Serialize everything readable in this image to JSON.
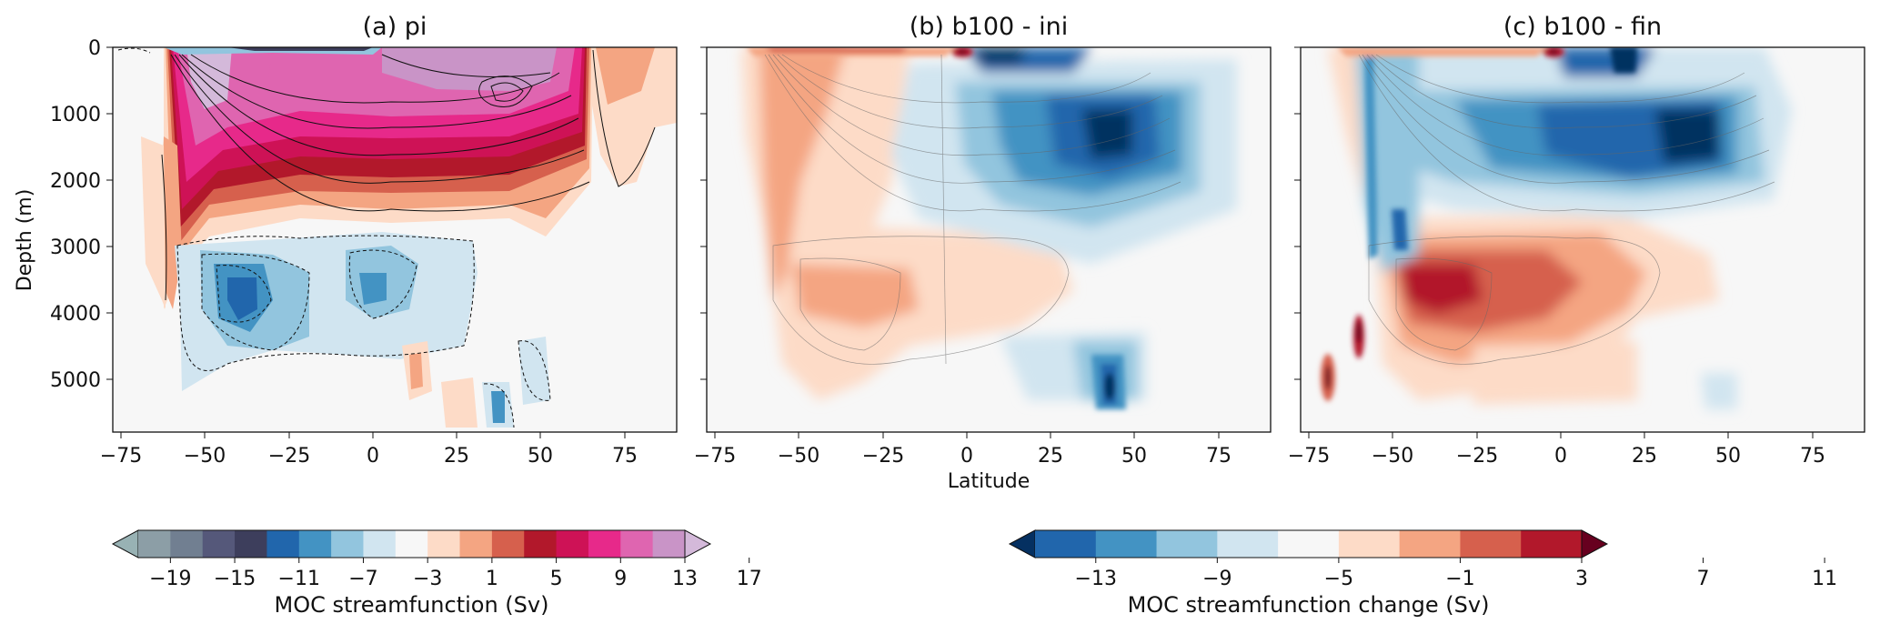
{
  "chart_data": [
    {
      "type": "contour",
      "title": "(a) pi",
      "xlabel": "",
      "ylabel": "Depth (m)",
      "xlim": [
        -78,
        90
      ],
      "ylim": [
        5800,
        0
      ],
      "x_ticks": [
        "−75",
        "−50",
        "−25",
        "0",
        "25",
        "50",
        "75"
      ],
      "x_tick_values": [
        -75,
        -50,
        -25,
        0,
        25,
        50,
        75
      ],
      "y_ticks": [
        "0",
        "1000",
        "2000",
        "3000",
        "4000",
        "5000"
      ],
      "y_tick_values": [
        0,
        1000,
        2000,
        3000,
        4000,
        5000
      ],
      "features": [
        {
          "kind": "cell",
          "sign": "positive",
          "lat_range": [
            -64,
            64
          ],
          "depth_range": [
            0,
            3000
          ],
          "max_sv": 19
        },
        {
          "kind": "cell",
          "sign": "negative",
          "lat_range": [
            -55,
            30
          ],
          "depth_range": [
            2800,
            5300
          ],
          "min_sv": -9
        },
        {
          "kind": "cell",
          "sign": "positive",
          "lat_range": [
            -66,
            -59
          ],
          "depth_range": [
            1500,
            4300
          ],
          "max_sv": 5
        },
        {
          "kind": "cell",
          "sign": "positive",
          "lat_range": [
            65,
            90
          ],
          "depth_range": [
            0,
            2100
          ],
          "max_sv": 3
        }
      ]
    },
    {
      "type": "contour",
      "title": "(b) b100 - ini",
      "xlabel": "Latitude",
      "ylabel": "",
      "xlim": [
        -78,
        90
      ],
      "ylim": [
        5800,
        0
      ],
      "x_ticks": [
        "−75",
        "−50",
        "−25",
        "0",
        "25",
        "50",
        "75"
      ],
      "x_tick_values": [
        -75,
        -50,
        -25,
        0,
        25,
        50,
        75
      ],
      "features": [
        {
          "kind": "anomaly",
          "sign": "negative",
          "lat_center": 40,
          "depth_center": 1400,
          "min_sv": -13
        },
        {
          "kind": "anomaly",
          "sign": "positive",
          "lat_range": [
            -65,
            -25
          ],
          "depth_range": [
            0,
            5200
          ],
          "max_sv": 5
        },
        {
          "kind": "anomaly",
          "sign": "negative",
          "lat_center": 40,
          "depth_center": 5100,
          "min_sv": -11
        },
        {
          "kind": "anomaly",
          "sign": "positive",
          "lat_center": -2,
          "depth_center": 50,
          "max_sv": 13
        }
      ]
    },
    {
      "type": "contour",
      "title": "(c) b100 - fin",
      "xlabel": "",
      "ylabel": "",
      "xlim": [
        -78,
        90
      ],
      "ylim": [
        5800,
        0
      ],
      "x_ticks": [
        "−75",
        "−50",
        "−25",
        "0",
        "25",
        "50",
        "75"
      ],
      "x_tick_values": [
        -75,
        -50,
        -25,
        0,
        25,
        50,
        75
      ],
      "features": [
        {
          "kind": "anomaly",
          "sign": "negative",
          "lat_center": 40,
          "depth_center": 1400,
          "min_sv": -13
        },
        {
          "kind": "anomaly",
          "sign": "positive",
          "lat_center": -35,
          "depth_center": 3700,
          "max_sv": 9
        },
        {
          "kind": "anomaly",
          "sign": "positive",
          "lat_center": -65,
          "depth_center": 4600,
          "max_sv": 11
        },
        {
          "kind": "anomaly",
          "sign": "positive",
          "lat_center": -2,
          "depth_center": 50,
          "max_sv": 13
        }
      ]
    }
  ],
  "colorbars": [
    {
      "label": "MOC streamfunction (Sv)",
      "ticks": [
        "−19",
        "−15",
        "−11",
        "−7",
        "−3",
        "1",
        "5",
        "9",
        "13",
        "17"
      ],
      "colors": [
        "#98b2b4",
        "#8c9ea6",
        "#717f91",
        "#55587a",
        "#3d3e5c",
        "#2166ac",
        "#4393c3",
        "#92c5de",
        "#d1e5f0",
        "#f7f7f7",
        "#fddbc7",
        "#f4a582",
        "#d6604d",
        "#b2182b",
        "#ce1256",
        "#e7298a",
        "#df65b0",
        "#c994c7",
        "#d4b9da"
      ],
      "extend": "both"
    },
    {
      "label": "MOC streamfunction change (Sv)",
      "ticks": [
        "−13",
        "−9",
        "−5",
        "−1",
        "3",
        "7",
        "11"
      ],
      "colors": [
        "#053061",
        "#2166ac",
        "#4393c3",
        "#92c5de",
        "#d1e5f0",
        "#f7f7f7",
        "#fddbc7",
        "#f4a582",
        "#d6604d",
        "#b2182b",
        "#67001f"
      ],
      "extend": "both"
    }
  ]
}
